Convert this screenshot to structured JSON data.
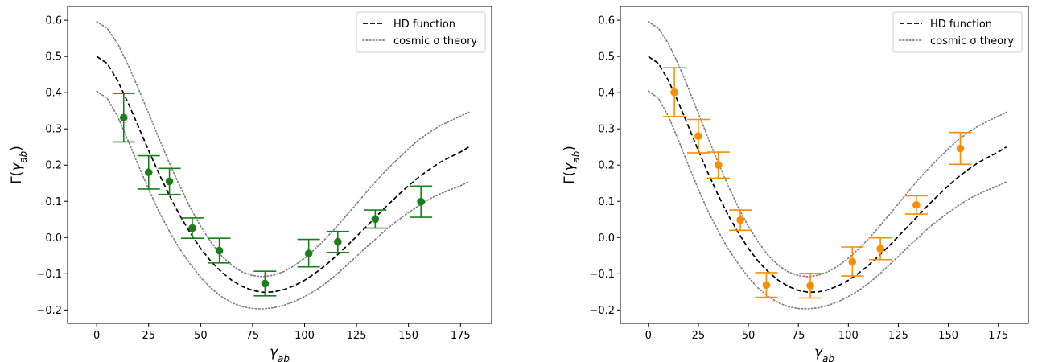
{
  "chart_data": [
    {
      "type": "scatter",
      "title": "",
      "xlabel": "γ_ab",
      "ylabel": "Γ(γ_ab)",
      "xlim": [
        -14,
        190
      ],
      "ylim": [
        -0.237,
        0.638
      ],
      "xticks": [
        0,
        25,
        50,
        75,
        100,
        125,
        150,
        175
      ],
      "yticks": [
        -0.2,
        -0.1,
        0.0,
        0.1,
        0.2,
        0.3,
        0.4,
        0.5,
        0.6
      ],
      "xtick_labels": [
        "0",
        "25",
        "50",
        "75",
        "100",
        "125",
        "150",
        "175"
      ],
      "ytick_labels": [
        "−0.2",
        "−0.1",
        "0.0",
        "0.1",
        "0.2",
        "0.3",
        "0.4",
        "0.5",
        "0.6"
      ],
      "grid": false,
      "legend_position": "top-right",
      "legend": [
        "HD function",
        "cosmic σ theory"
      ],
      "lines": [
        {
          "name": "HD function",
          "style": "dashed",
          "color": "#000000",
          "x": [
            0,
            5,
            10,
            15,
            20,
            25,
            30,
            35,
            40,
            45,
            50,
            55,
            60,
            65,
            70,
            75,
            80,
            85,
            90,
            95,
            100,
            105,
            110,
            115,
            120,
            125,
            130,
            135,
            140,
            145,
            150,
            155,
            160,
            165,
            170,
            175,
            179
          ],
          "y": [
            0.5,
            0.481,
            0.434,
            0.373,
            0.307,
            0.24,
            0.176,
            0.116,
            0.061,
            0.013,
            -0.03,
            -0.066,
            -0.095,
            -0.118,
            -0.135,
            -0.146,
            -0.151,
            -0.15,
            -0.144,
            -0.133,
            -0.118,
            -0.099,
            -0.077,
            -0.052,
            -0.025,
            0.003,
            0.032,
            0.061,
            0.09,
            0.117,
            0.143,
            0.167,
            0.188,
            0.207,
            0.222,
            0.236,
            0.25
          ]
        },
        {
          "name": "cosmic σ theory",
          "style": "dotted",
          "color": "#808080",
          "x": [
            0,
            5,
            10,
            15,
            20,
            25,
            30,
            35,
            40,
            45,
            50,
            55,
            60,
            65,
            70,
            75,
            80,
            85,
            90,
            95,
            100,
            105,
            110,
            115,
            120,
            125,
            130,
            135,
            140,
            145,
            150,
            155,
            160,
            165,
            170,
            175,
            179
          ],
          "y": [
            0.596,
            0.578,
            0.536,
            0.478,
            0.412,
            0.343,
            0.273,
            0.205,
            0.142,
            0.083,
            0.031,
            -0.013,
            -0.05,
            -0.077,
            -0.095,
            -0.105,
            -0.108,
            -0.104,
            -0.094,
            -0.078,
            -0.057,
            -0.032,
            -0.004,
            0.027,
            0.06,
            0.093,
            0.127,
            0.16,
            0.19,
            0.218,
            0.245,
            0.27,
            0.29,
            0.308,
            0.322,
            0.335,
            0.346
          ]
        },
        {
          "name": "",
          "style": "dotted",
          "color": "#808080",
          "x": [
            0,
            5,
            10,
            15,
            20,
            25,
            30,
            35,
            40,
            45,
            50,
            55,
            60,
            65,
            70,
            75,
            80,
            85,
            90,
            95,
            100,
            105,
            110,
            115,
            120,
            125,
            130,
            135,
            140,
            145,
            150,
            155,
            160,
            165,
            170,
            175,
            179
          ],
          "y": [
            0.404,
            0.385,
            0.335,
            0.269,
            0.2,
            0.133,
            0.071,
            0.017,
            -0.032,
            -0.073,
            -0.11,
            -0.14,
            -0.163,
            -0.18,
            -0.191,
            -0.196,
            -0.197,
            -0.194,
            -0.187,
            -0.177,
            -0.163,
            -0.147,
            -0.127,
            -0.104,
            -0.078,
            -0.052,
            -0.025,
            0.0,
            0.026,
            0.048,
            0.069,
            0.088,
            0.106,
            0.12,
            0.132,
            0.143,
            0.154
          ]
        }
      ],
      "points": {
        "color": "#1a7f1a",
        "x": [
          13,
          25,
          35,
          46,
          59,
          81,
          102,
          116,
          134,
          156
        ],
        "y": [
          0.331,
          0.18,
          0.155,
          0.026,
          -0.036,
          -0.127,
          -0.044,
          -0.012,
          0.051,
          0.099
        ],
        "yerr_low": [
          0.067,
          0.046,
          0.036,
          0.028,
          0.034,
          0.034,
          0.037,
          0.029,
          0.025,
          0.043
        ],
        "yerr_high": [
          0.067,
          0.046,
          0.036,
          0.028,
          0.034,
          0.034,
          0.039,
          0.029,
          0.025,
          0.043
        ]
      }
    },
    {
      "type": "scatter",
      "title": "",
      "xlabel": "γ_ab",
      "ylabel": "Γ(γ_ab)",
      "xlim": [
        -14,
        190
      ],
      "ylim": [
        -0.237,
        0.638
      ],
      "xticks": [
        0,
        25,
        50,
        75,
        100,
        125,
        150,
        175
      ],
      "yticks": [
        -0.2,
        -0.1,
        0.0,
        0.1,
        0.2,
        0.3,
        0.4,
        0.5,
        0.6
      ],
      "xtick_labels": [
        "0",
        "25",
        "50",
        "75",
        "100",
        "125",
        "150",
        "175"
      ],
      "ytick_labels": [
        "−0.2",
        "−0.1",
        "0.0",
        "0.1",
        "0.2",
        "0.3",
        "0.4",
        "0.5",
        "0.6"
      ],
      "grid": false,
      "legend_position": "top-right",
      "legend": [
        "HD function",
        "cosmic σ theory"
      ],
      "lines": [
        {
          "name": "HD function",
          "style": "dashed",
          "color": "#000000",
          "x": [
            0,
            5,
            10,
            15,
            20,
            25,
            30,
            35,
            40,
            45,
            50,
            55,
            60,
            65,
            70,
            75,
            80,
            85,
            90,
            95,
            100,
            105,
            110,
            115,
            120,
            125,
            130,
            135,
            140,
            145,
            150,
            155,
            160,
            165,
            170,
            175,
            179
          ],
          "y": [
            0.5,
            0.481,
            0.434,
            0.373,
            0.307,
            0.24,
            0.176,
            0.116,
            0.061,
            0.013,
            -0.03,
            -0.066,
            -0.095,
            -0.118,
            -0.135,
            -0.146,
            -0.151,
            -0.15,
            -0.144,
            -0.133,
            -0.118,
            -0.099,
            -0.077,
            -0.052,
            -0.025,
            0.003,
            0.032,
            0.061,
            0.09,
            0.117,
            0.143,
            0.167,
            0.188,
            0.207,
            0.222,
            0.236,
            0.25
          ]
        },
        {
          "name": "cosmic σ theory",
          "style": "dotted",
          "color": "#808080",
          "x": [
            0,
            5,
            10,
            15,
            20,
            25,
            30,
            35,
            40,
            45,
            50,
            55,
            60,
            65,
            70,
            75,
            80,
            85,
            90,
            95,
            100,
            105,
            110,
            115,
            120,
            125,
            130,
            135,
            140,
            145,
            150,
            155,
            160,
            165,
            170,
            175,
            179
          ],
          "y": [
            0.596,
            0.578,
            0.536,
            0.478,
            0.412,
            0.343,
            0.273,
            0.205,
            0.142,
            0.083,
            0.031,
            -0.013,
            -0.05,
            -0.077,
            -0.095,
            -0.105,
            -0.108,
            -0.104,
            -0.094,
            -0.078,
            -0.057,
            -0.032,
            -0.004,
            0.027,
            0.06,
            0.093,
            0.127,
            0.16,
            0.19,
            0.218,
            0.245,
            0.27,
            0.29,
            0.308,
            0.322,
            0.335,
            0.346
          ]
        },
        {
          "name": "",
          "style": "dotted",
          "color": "#808080",
          "x": [
            0,
            5,
            10,
            15,
            20,
            25,
            30,
            35,
            40,
            45,
            50,
            55,
            60,
            65,
            70,
            75,
            80,
            85,
            90,
            95,
            100,
            105,
            110,
            115,
            120,
            125,
            130,
            135,
            140,
            145,
            150,
            155,
            160,
            165,
            170,
            175,
            179
          ],
          "y": [
            0.404,
            0.385,
            0.335,
            0.269,
            0.2,
            0.133,
            0.071,
            0.017,
            -0.032,
            -0.073,
            -0.11,
            -0.14,
            -0.163,
            -0.18,
            -0.191,
            -0.196,
            -0.197,
            -0.194,
            -0.187,
            -0.177,
            -0.163,
            -0.147,
            -0.127,
            -0.104,
            -0.078,
            -0.052,
            -0.025,
            0.0,
            0.026,
            0.048,
            0.069,
            0.088,
            0.106,
            0.12,
            0.132,
            0.143,
            0.154
          ]
        }
      ],
      "points": {
        "color": "#ff8c00",
        "x": [
          13,
          25,
          35,
          46,
          59,
          81,
          102,
          116,
          134,
          156
        ],
        "y": [
          0.401,
          0.28,
          0.2,
          0.048,
          -0.131,
          -0.133,
          -0.067,
          -0.031,
          0.09,
          0.246
        ],
        "yerr_low": [
          0.067,
          0.046,
          0.036,
          0.028,
          0.034,
          0.034,
          0.039,
          0.03,
          0.025,
          0.044
        ],
        "yerr_high": [
          0.068,
          0.046,
          0.036,
          0.028,
          0.034,
          0.034,
          0.041,
          0.03,
          0.025,
          0.044
        ]
      }
    }
  ]
}
